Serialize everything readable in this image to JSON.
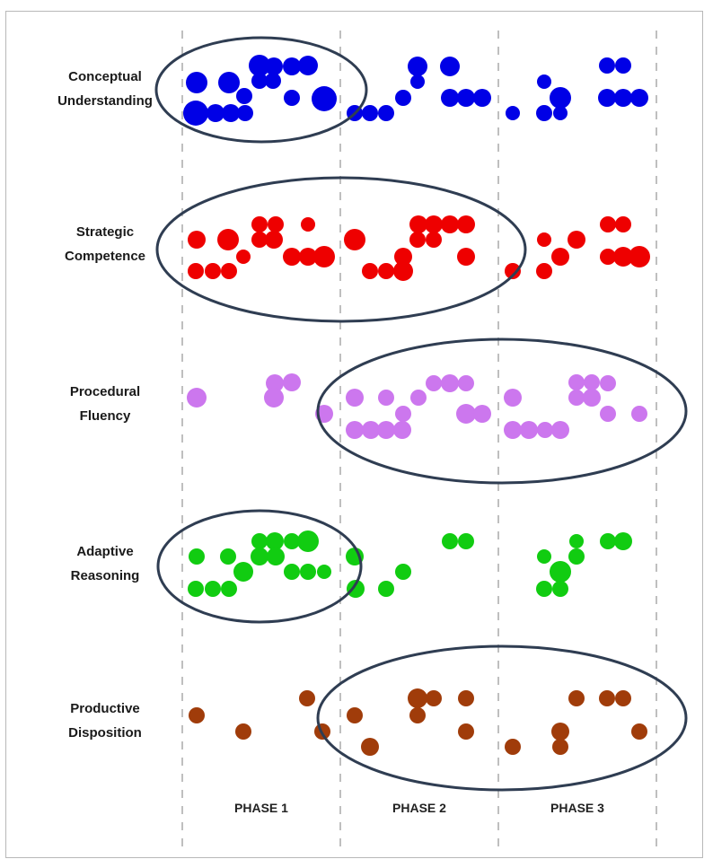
{
  "chart_data": {
    "type": "scatter",
    "phases": [
      "PHASE 1",
      "PHASE 2",
      "PHASE 3"
    ],
    "rows": [
      {
        "label": "Conceptual\nUnderstanding",
        "color": "#0000e6",
        "circled_phases": [
          1
        ]
      },
      {
        "label": "Strategic\nCompetence",
        "color": "#ee0000",
        "circled_phases": [
          1,
          2
        ]
      },
      {
        "label": "Procedural\nFluency",
        "color": "#cc77ee",
        "circled_phases": [
          2,
          3
        ]
      },
      {
        "label": "Adaptive\nReasoning",
        "color": "#11cc11",
        "circled_phases": [
          1
        ]
      },
      {
        "label": "Productive\nDisposition",
        "color": "#a03c0a",
        "circled_phases": [
          2,
          3
        ]
      }
    ],
    "grid": "dashed vertical phase separators",
    "legend": "none"
  }
}
